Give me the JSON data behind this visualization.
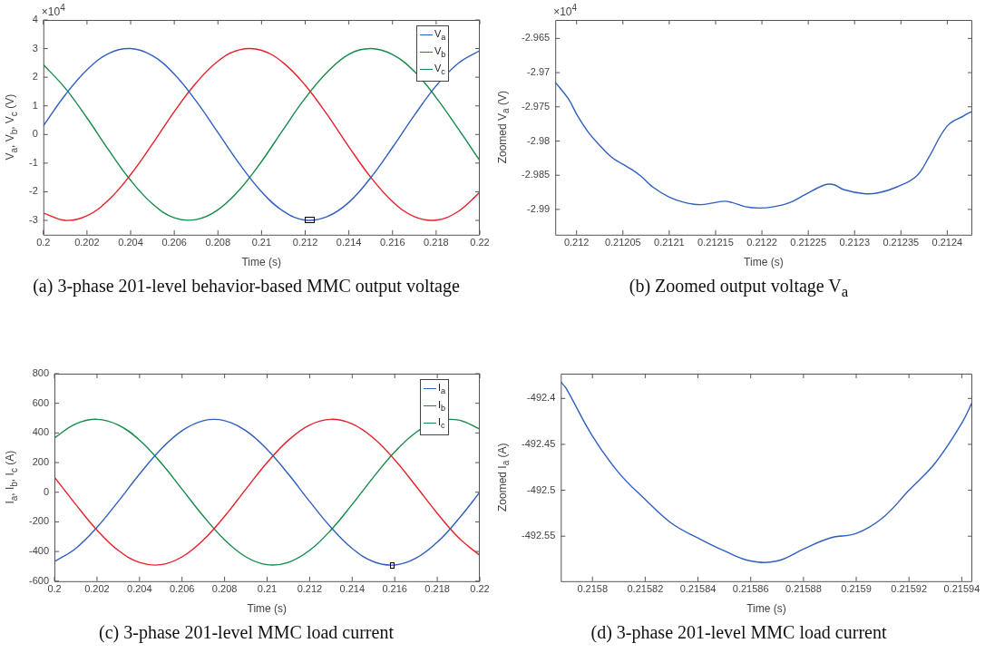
{
  "chart_data": [
    {
      "type": "line",
      "title": "(a) 3-phase 201-level behavior-based MMC output voltage",
      "xlabel": "Time (s)",
      "ylabel": "V$_{a}$, V$_{b}$, V$_{c}$ (V)",
      "annotations": [
        "×10$^{4}$"
      ],
      "legend": "top right",
      "xlim": [
        0.2,
        0.22
      ],
      "ylim": [
        -3.5,
        4
      ],
      "xticks": [
        0.2,
        0.202,
        0.204,
        0.206,
        0.208,
        0.21,
        0.212,
        0.214,
        0.216,
        0.218,
        0.22
      ],
      "yticks": [
        -3,
        -2,
        -1,
        0,
        1,
        2,
        3,
        4
      ],
      "x": [
        0.2,
        0.201,
        0.202,
        0.203,
        0.204,
        0.205,
        0.206,
        0.207,
        0.208,
        0.209,
        0.21,
        0.211,
        0.212,
        0.213,
        0.214,
        0.215,
        0.216,
        0.217,
        0.218,
        0.219,
        0.22
      ],
      "series": [
        {
          "name": "V$_{a}$",
          "color": "#2f5fbf",
          "values": [
            0.3,
            1.38,
            2.26,
            2.83,
            3.0,
            2.75,
            2.11,
            1.17,
            0.07,
            -1.04,
            -2.0,
            -2.68,
            -2.99,
            -2.87,
            -2.37,
            -1.51,
            -0.45,
            0.67,
            1.7,
            2.48,
            2.93
          ]
        },
        {
          "name": "V$_{b}$",
          "color": "#e62129",
          "values": [
            -2.74,
            -3.0,
            -2.84,
            -2.28,
            -1.4,
            -0.33,
            0.8,
            1.8,
            2.56,
            2.96,
            2.94,
            2.5,
            1.72,
            0.7,
            -0.43,
            -1.49,
            -2.34,
            -2.87,
            -2.99,
            -2.69,
            -2.02
          ]
        },
        {
          "name": "V$_{c}$",
          "color": "#168a48",
          "values": [
            2.44,
            1.62,
            0.58,
            -0.55,
            -1.6,
            -2.42,
            -2.91,
            -2.97,
            -2.63,
            -1.92,
            -0.94,
            0.18,
            1.27,
            2.17,
            2.8,
            3.0,
            2.79,
            2.2,
            1.29,
            0.21,
            -0.91
          ]
        }
      ]
    },
    {
      "type": "line",
      "title": "(b) Zoomed output voltage V$_{a}$",
      "xlabel": "Time (s)",
      "ylabel": "Zoomed V$_{a}$ (V)",
      "annotations": [
        "×10$^{4}$"
      ],
      "xlim": [
        0.211977,
        0.212427
      ],
      "ylim": [
        -2.9937,
        -2.9623
      ],
      "xticks": [
        0.212,
        0.21205,
        0.2121,
        0.21215,
        0.2122,
        0.21225,
        0.2123,
        0.21235,
        0.2124
      ],
      "yticks": [
        -2.99,
        -2.985,
        -2.98,
        -2.975,
        -2.97,
        -2.965
      ],
      "x": [
        0.211977,
        0.211991,
        0.212001,
        0.212012,
        0.212024,
        0.212038,
        0.21205,
        0.21206,
        0.21207,
        0.212083,
        0.2121,
        0.212117,
        0.212134,
        0.212149,
        0.21216,
        0.212168,
        0.212182,
        0.212197,
        0.212213,
        0.21223,
        0.212247,
        0.212268,
        0.212278,
        0.212288,
        0.21231,
        0.212325,
        0.212346,
        0.212367,
        0.21238,
        0.2124,
        0.212418,
        0.212426
      ],
      "series": [
        {
          "color": "#2f5fbf",
          "values": [
            -2.9714,
            -2.9738,
            -2.9763,
            -2.9786,
            -2.9805,
            -2.9824,
            -2.9834,
            -2.9842,
            -2.9852,
            -2.9868,
            -2.9882,
            -2.989,
            -2.9893,
            -2.989,
            -2.9888,
            -2.989,
            -2.9896,
            -2.9898,
            -2.9896,
            -2.989,
            -2.9878,
            -2.9864,
            -2.9864,
            -2.9871,
            -2.9877,
            -2.9876,
            -2.9867,
            -2.9851,
            -2.9824,
            -2.9778,
            -2.9763,
            -2.9757
          ]
        }
      ]
    },
    {
      "type": "line",
      "title": "(c) 3-phase 201-level MMC load current",
      "xlabel": "Time (s)",
      "ylabel": "I$_{a}$, I$_{b}$, I$_{c}$ (A)",
      "legend": "top right",
      "xlim": [
        0.2,
        0.22
      ],
      "ylim": [
        -600,
        800
      ],
      "xticks": [
        0.2,
        0.202,
        0.204,
        0.206,
        0.208,
        0.21,
        0.212,
        0.214,
        0.216,
        0.218,
        0.22
      ],
      "yticks": [
        -600,
        -400,
        -200,
        0,
        200,
        400,
        600,
        800
      ],
      "x": [
        0.2,
        0.201,
        0.202,
        0.203,
        0.204,
        0.205,
        0.206,
        0.207,
        0.208,
        0.209,
        0.21,
        0.211,
        0.212,
        0.213,
        0.214,
        0.215,
        0.216,
        0.217,
        0.218,
        0.219,
        0.22
      ],
      "series": [
        {
          "name": "I$_{a}$",
          "color": "#2f5fbf",
          "values": [
            -468,
            -379,
            -237,
            -62,
            122,
            289,
            415,
            483,
            483,
            415,
            289,
            122,
            -62,
            -237,
            -379,
            -468,
            -491,
            -445,
            -337,
            -181,
            0
          ]
        },
        {
          "name": "I$_{b}$",
          "color": "#e62129",
          "values": [
            102,
            -82,
            -255,
            -392,
            -474,
            -489,
            -436,
            -322,
            -162,
            21,
            200,
            351,
            454,
            492,
            461,
            366,
            219,
            41,
            -142,
            -306,
            -426
          ]
        },
        {
          "name": "I$_{c}$",
          "color": "#168a48",
          "values": [
            366,
            461,
            492,
            454,
            352,
            200,
            21,
            -161,
            -321,
            -436,
            -489,
            -473,
            -392,
            -255,
            -82,
            102,
            272,
            404,
            479,
            487,
            426
          ]
        }
      ]
    },
    {
      "type": "line",
      "title": "(d) 3-phase 201-level MMC load current",
      "xlabel": "Time (s)",
      "ylabel": "Zoomed I$_{a}$ (A)",
      "xlim": [
        0.215788,
        0.215944
      ],
      "ylim": [
        -492.599,
        -492.373
      ],
      "xticks": [
        0.2158,
        0.21582,
        0.21584,
        0.21586,
        0.21588,
        0.2159,
        0.21592,
        0.21594
      ],
      "yticks": [
        -492.55,
        -492.5,
        -492.45,
        -492.4
      ],
      "x": [
        0.215788,
        0.21579,
        0.2158,
        0.21581,
        0.21582,
        0.21583,
        0.21584,
        0.21585,
        0.21586,
        0.21587,
        0.21588,
        0.21589,
        0.2159,
        0.21591,
        0.21592,
        0.21593,
        0.21594,
        0.215944
      ],
      "series": [
        {
          "color": "#2f5fbf",
          "values": [
            -492.382,
            -492.389,
            -492.441,
            -492.481,
            -492.51,
            -492.536,
            -492.552,
            -492.566,
            -492.577,
            -492.577,
            -492.564,
            -492.552,
            -492.547,
            -492.53,
            -492.5,
            -492.47,
            -492.427,
            -492.404
          ]
        }
      ]
    }
  ]
}
